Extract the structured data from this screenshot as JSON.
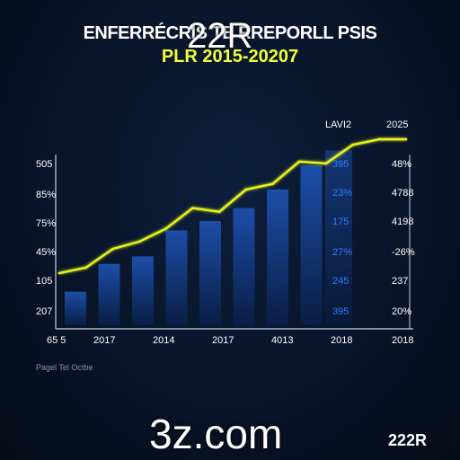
{
  "title": "ENFERRÉCRIS TE RREPORLL PSIS",
  "subtitle": "PLR 2015-20207",
  "overlay_top": "22R",
  "overlay_bottom": "3z.com",
  "corner_label": "222R",
  "footnote": "Pagel Tel Octbe",
  "colors": {
    "background": "#081428",
    "line": "#e6f51f",
    "bar_top": "#1c4ea8",
    "bar_bottom": "#0a1d44",
    "text": "#ffffff",
    "value_blue": "#2e7bff"
  },
  "chart_data": {
    "type": "bar",
    "title": "ENFERRÉCRIS TE RREPORLL PSIS",
    "subtitle": "PLR 2015-20207",
    "y_tick_labels": [
      "505",
      "85%",
      "75%",
      "45%",
      "105",
      "207"
    ],
    "x_tick_labels": [
      "65 5",
      "2017",
      "2014",
      "2017",
      "4013",
      "2018",
      "2018"
    ],
    "bars": [
      0.18,
      0.33,
      0.37,
      0.51,
      0.56,
      0.63,
      0.73,
      0.86
    ],
    "line": [
      0.28,
      0.31,
      0.41,
      0.45,
      0.52,
      0.63,
      0.61,
      0.73,
      0.76,
      0.88,
      0.87,
      0.97,
      1.0,
      1.0
    ],
    "column_headers": [
      "LAVI2",
      "2025"
    ],
    "value_column_1": [
      "395",
      "23%",
      "175",
      "27%",
      "245",
      "395"
    ],
    "value_column_2": [
      "48%",
      "4788",
      "4198",
      "-26%",
      "237",
      "20%"
    ],
    "ylim": [
      0,
      1
    ]
  }
}
